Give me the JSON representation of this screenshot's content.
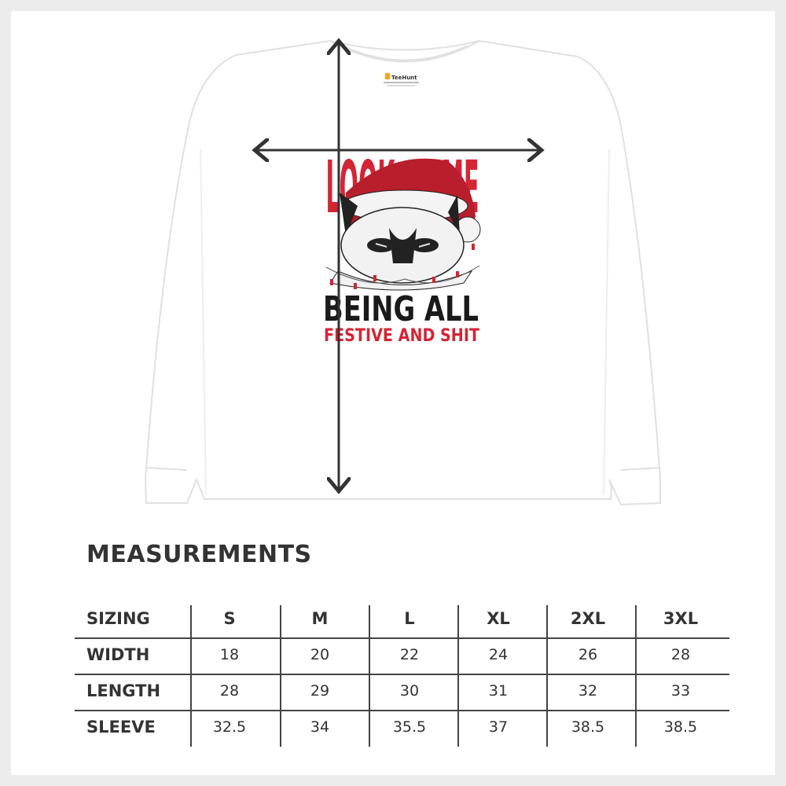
{
  "product": {
    "label_brand": "TeeHunt",
    "print_lines": [
      "LOOK AT ME",
      "BEING ALL",
      "FESTIVE AND SHIT"
    ],
    "colors": {
      "print_red": "#d42535",
      "print_black": "#1a1a1a",
      "text": "#333333",
      "shirt": "#ffffff"
    }
  },
  "measurements": {
    "title": "MEASUREMENTS",
    "header": [
      "SIZING",
      "S",
      "M",
      "L",
      "XL",
      "2XL",
      "3XL"
    ],
    "rows": [
      {
        "label": "WIDTH",
        "values": [
          "18",
          "20",
          "22",
          "24",
          "26",
          "28"
        ]
      },
      {
        "label": "LENGTH",
        "values": [
          "28",
          "29",
          "30",
          "31",
          "32",
          "33"
        ]
      },
      {
        "label": "SLEEVE",
        "values": [
          "32.5",
          "34",
          "35.5",
          "37",
          "38.5",
          "38.5"
        ]
      }
    ]
  }
}
